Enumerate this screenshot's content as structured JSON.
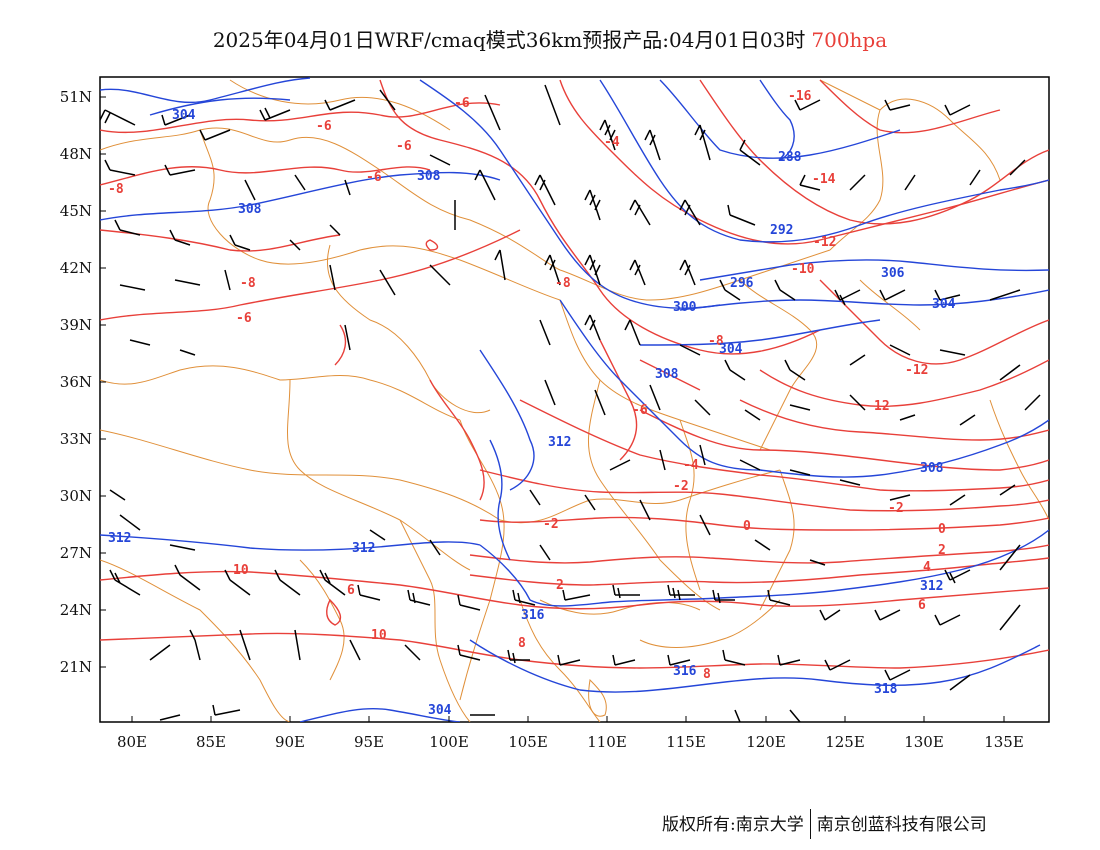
{
  "title": {
    "main": "2025年04月01日WRF/cmaq模式36km预报产品:04月01日03时",
    "level": "700hpa"
  },
  "axes": {
    "lat_labels": [
      "51N",
      "48N",
      "45N",
      "42N",
      "39N",
      "36N",
      "33N",
      "30N",
      "27N",
      "24N",
      "21N"
    ],
    "lon_labels": [
      "80E",
      "85E",
      "90E",
      "95E",
      "100E",
      "105E",
      "110E",
      "115E",
      "120E",
      "125E",
      "130E",
      "135E"
    ]
  },
  "temperature_labels": [
    "-16",
    "-14",
    "-12",
    "-10",
    "-8",
    "-8",
    "-8",
    "-8",
    "-6",
    "-6",
    "-6",
    "-6",
    "-6",
    "-6",
    "-4",
    "-4",
    "-2",
    "-2",
    "-2",
    "0",
    "0",
    "2",
    "2",
    "4",
    "6",
    "6",
    "8",
    "8",
    "10",
    "10",
    "12",
    "-12"
  ],
  "height_labels": [
    "304",
    "308",
    "308",
    "288",
    "292",
    "296",
    "300",
    "304",
    "304",
    "306",
    "308",
    "308",
    "312",
    "312",
    "312",
    "312",
    "316",
    "316",
    "318",
    "304"
  ],
  "colors": {
    "temperature": "#e8403a",
    "height": "#2546d8",
    "border": "#e0903a",
    "wind": "#000000"
  },
  "footer": {
    "copyright": "版权所有:南京大学",
    "company": "南京创蓝科技有限公司"
  }
}
